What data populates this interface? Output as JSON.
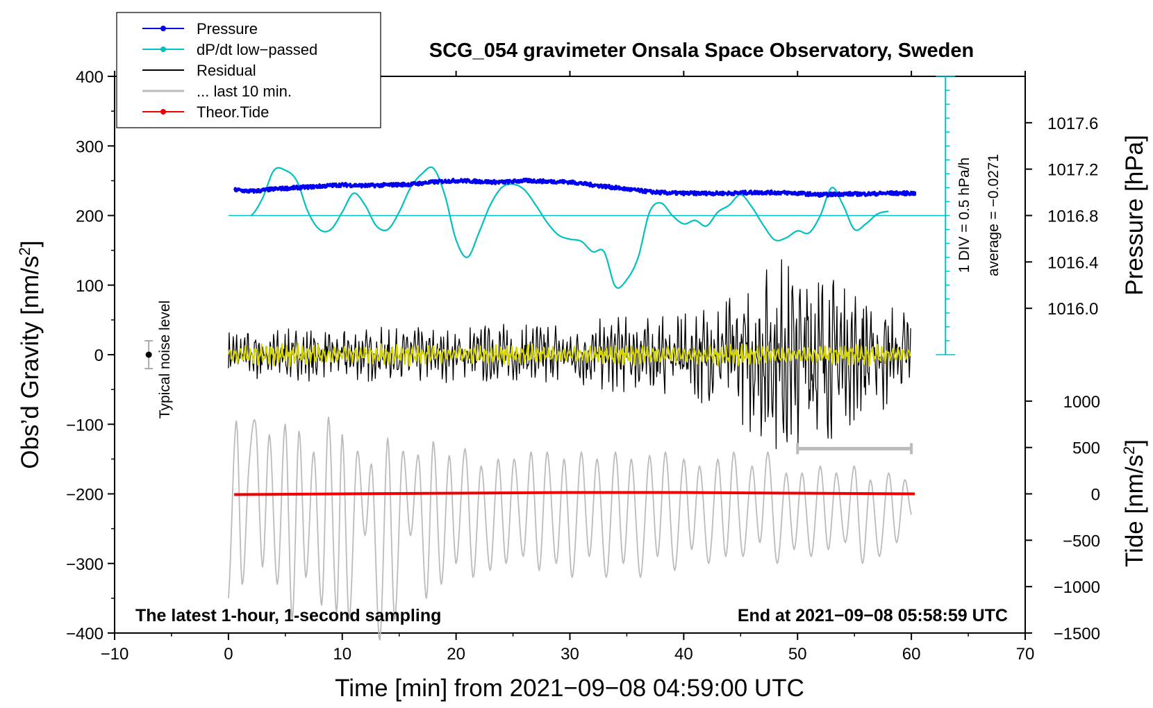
{
  "chart_data": {
    "type": "line",
    "title": "SCG_054 gravimeter Onsala Space Observatory, Sweden",
    "xlabel": "Time [min] from 2021−09−08 04:59:00 UTC",
    "ylabel_left": "Obs’d Gravity [nm/s2]",
    "ylabel_left_unit_base": "Obs’d Gravity [nm/s",
    "ylabel_left_unit_sup": "2",
    "ylabel_left_unit_tail": "]",
    "ylabel_right_top": "Pressure [hPa]",
    "ylabel_right_bottom_base": "Tide [nm/s",
    "ylabel_right_bottom_sup": "2",
    "ylabel_right_bottom_tail": "]",
    "xlim": [
      -10,
      70
    ],
    "ylim": [
      -400,
      400
    ],
    "xticks": [
      "−10",
      "0",
      "10",
      "20",
      "30",
      "40",
      "50",
      "60",
      "70"
    ],
    "xtick_values": [
      -10,
      0,
      10,
      20,
      30,
      40,
      50,
      60,
      70
    ],
    "yticks": [
      "−400",
      "−300",
      "−200",
      "−100",
      "0",
      "100",
      "200",
      "300",
      "400"
    ],
    "ytick_values": [
      -400,
      -300,
      -200,
      -100,
      0,
      100,
      200,
      300,
      400
    ],
    "pressure_axis": {
      "ticks": [
        "1016.0",
        "1016.4",
        "1016.8",
        "1017.2",
        "1017.6"
      ],
      "tick_values": [
        1016.0,
        1016.4,
        1016.8,
        1017.2,
        1017.6
      ],
      "gravity_at_1016_8": 200,
      "gravity_per_hpa": 166.7
    },
    "tide_axis": {
      "ticks": [
        "−1500",
        "−1000",
        "−500",
        "0",
        "500",
        "1000"
      ],
      "tick_values": [
        -1500,
        -1000,
        -500,
        0,
        500,
        1000
      ],
      "gravity_at_0": -200,
      "gravity_per_unit": 0.1333
    },
    "scale_bar": {
      "line1": "1 DIV = 0.5 hPa/h",
      "line2": "average = −0.0271",
      "x": 63,
      "y_range": [
        0,
        400
      ],
      "divisions": 20
    },
    "noise_level": {
      "label": "Typical noise level",
      "x": -7,
      "y": 0,
      "half_range": 20
    },
    "window_bar": {
      "x_range": [
        50,
        60
      ],
      "y": -135
    },
    "bottom_left_note": "The latest 1-hour, 1-second sampling",
    "bottom_right_note": "End at 2021−09−08 05:58:59 UTC",
    "legend": [
      {
        "label": "Pressure",
        "color": "#0000ee",
        "marker": true
      },
      {
        "label": "dP/dt low−passed",
        "color": "#00c0c0",
        "marker": true
      },
      {
        "label": "Residual",
        "color": "#000000",
        "marker": false
      },
      {
        "label": "... last 10 min.",
        "color": "#bbbbbb",
        "marker": false
      },
      {
        "label": "Theor.Tide",
        "color": "#ee0000",
        "marker": true
      }
    ],
    "series": [
      {
        "name": "Pressure",
        "color": "#0000ee",
        "x": [
          0.5,
          2,
          4,
          6,
          8,
          10,
          12,
          14,
          16,
          18,
          20,
          22,
          24,
          26,
          28,
          30,
          32,
          34,
          36,
          38,
          40,
          42,
          44,
          46,
          48,
          50,
          52,
          54,
          56,
          58,
          60.3
        ],
        "y": [
          237,
          235,
          238,
          240,
          242,
          244,
          243,
          244,
          245,
          248,
          250,
          249,
          248,
          250,
          249,
          248,
          244,
          240,
          236,
          233,
          232,
          232,
          232,
          233,
          233,
          232,
          230,
          231,
          231,
          232,
          232
        ]
      },
      {
        "name": "dP/dt low-passed",
        "color": "#00c0c0",
        "x": [
          2,
          3,
          4,
          5,
          6,
          7,
          8,
          9,
          10,
          11,
          12,
          13,
          14,
          15,
          16,
          17,
          18,
          19,
          20,
          21,
          22,
          23,
          24,
          25,
          26,
          27,
          28,
          29,
          30,
          31,
          32,
          33,
          34,
          35,
          36,
          37,
          38,
          39,
          40,
          41,
          42,
          43,
          44,
          45,
          46,
          47,
          48,
          49,
          50,
          51,
          52,
          53,
          54,
          55,
          56,
          57,
          58
        ],
        "y": [
          200,
          225,
          265,
          265,
          250,
          205,
          180,
          180,
          205,
          232,
          215,
          185,
          180,
          205,
          240,
          260,
          268,
          230,
          165,
          140,
          175,
          215,
          240,
          245,
          237,
          215,
          190,
          172,
          166,
          163,
          148,
          148,
          98,
          108,
          140,
          205,
          218,
          200,
          188,
          193,
          185,
          205,
          215,
          230,
          212,
          186,
          165,
          168,
          178,
          175,
          200,
          240,
          215,
          180,
          188,
          202,
          206
        ]
      },
      {
        "name": "Residual",
        "color": "#000000",
        "x_range": [
          0,
          60
        ],
        "center": 0,
        "amp_by_min": [
          [
            0,
            30
          ],
          [
            20,
            35
          ],
          [
            40,
            50
          ],
          [
            45,
            80
          ],
          [
            46,
            110
          ],
          [
            50,
            130
          ],
          [
            53,
            105
          ],
          [
            56,
            75
          ],
          [
            60,
            60
          ]
        ]
      },
      {
        "name": "Residual smoothed",
        "color": "#d4d400",
        "x_range": [
          0,
          60
        ],
        "center": 0,
        "amplitude": 12
      },
      {
        "name": "... last 10 min.",
        "color": "#bbbbbb",
        "x": [
          0,
          0.7,
          1.2,
          1.8,
          2.4,
          3,
          3.6,
          4.3,
          5,
          5.6,
          6.2,
          6.8,
          7.5,
          8.2,
          8.8,
          9.5,
          10,
          10.6,
          11.3,
          12,
          12.6,
          13.3,
          14,
          14.6,
          15.3,
          16,
          16.7,
          17.4,
          18,
          18.7,
          19.4,
          20,
          20.8,
          21.5,
          22.2,
          23,
          23.7,
          24.4,
          25.1,
          25.9,
          26.6,
          27.3,
          28,
          28.8,
          29.5,
          30.2,
          31,
          31.7,
          32.4,
          33.2,
          34,
          34.7,
          35.4,
          36.2,
          37,
          37.7,
          38.4,
          39.2,
          40,
          40.7,
          41.4,
          42.2,
          43,
          43.7,
          44.4,
          45.2,
          46,
          46.7,
          47.4,
          48.2,
          49,
          49.7,
          50.4,
          51.2,
          52,
          52.7,
          53.4,
          54.2,
          55,
          55.7,
          56.4,
          57.2,
          58,
          58.7,
          59.4,
          60
        ],
        "y": [
          -350,
          -95,
          -330,
          -160,
          -100,
          -305,
          -115,
          -330,
          -100,
          -380,
          -110,
          -320,
          -140,
          -360,
          -90,
          -370,
          -115,
          -380,
          -140,
          -260,
          -160,
          -410,
          -120,
          -380,
          -140,
          -260,
          -145,
          -350,
          -125,
          -330,
          -145,
          -300,
          -135,
          -320,
          -160,
          -310,
          -150,
          -300,
          -150,
          -290,
          -140,
          -310,
          -140,
          -300,
          -150,
          -320,
          -140,
          -290,
          -150,
          -320,
          -140,
          -300,
          -150,
          -320,
          -145,
          -290,
          -140,
          -310,
          -150,
          -280,
          -160,
          -300,
          -150,
          -290,
          -140,
          -290,
          -160,
          -270,
          -140,
          -300,
          -170,
          -280,
          -170,
          -290,
          -160,
          -280,
          -170,
          -270,
          -160,
          -300,
          -180,
          -290,
          -170,
          -270,
          -180,
          -230
        ]
      },
      {
        "name": "Theor.Tide",
        "color": "#ee0000",
        "x": [
          0.5,
          10,
          20,
          30,
          40,
          50,
          60.3
        ],
        "y": [
          -201,
          -200,
          -199,
          -198,
          -198,
          -199,
          -200
        ]
      },
      {
        "name": "dP/dt zero line",
        "color": "#00c0c0",
        "x": [
          0,
          63
        ],
        "y": [
          200,
          200
        ]
      }
    ]
  }
}
